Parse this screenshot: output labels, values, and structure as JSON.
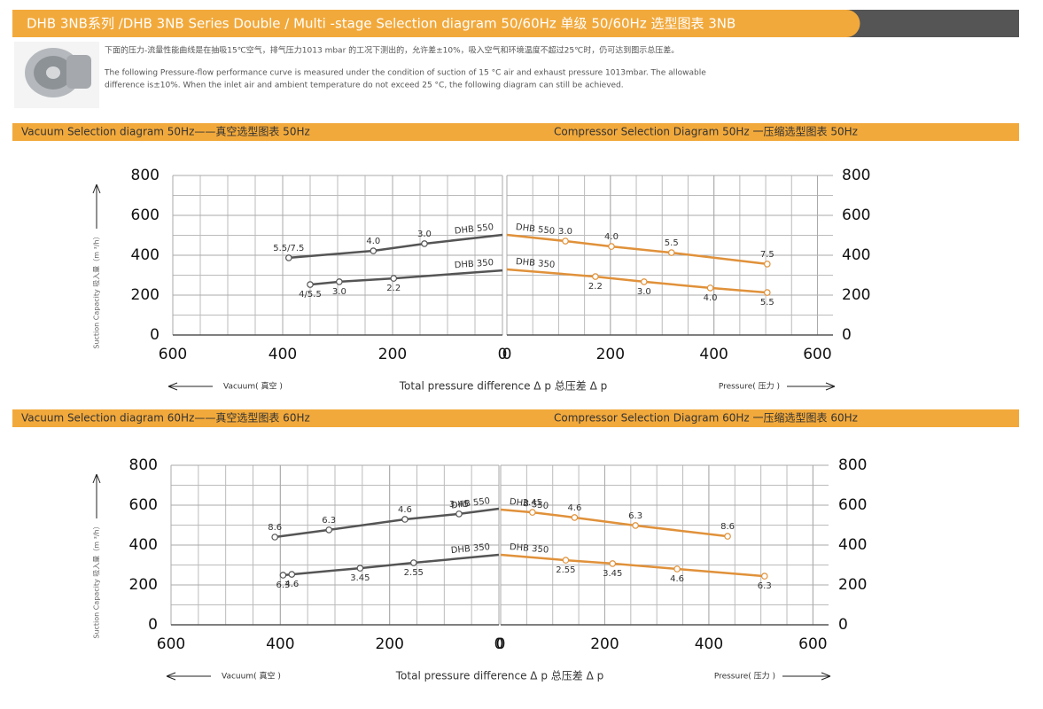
{
  "header": {
    "title": "DHB 3NB系列 /DHB 3NB Series Double / Multi -stage Selection diagram 50/60Hz 单级  50/60Hz 选型图表 3NB"
  },
  "description": {
    "cn": "下面的压力-流量性能曲线是在抽吸15℃空气，排气压力1013 mbar 的工况下测出的，允许差±10%，吸入空气和环境温度不超过25℃时，仍可达到图示总压差。",
    "en": [
      "The following Pressure-flow performance curve is measured under the condition of suction of 15 °C air and exhaust pressure 1013mbar. The allowable",
      "difference is±10%. When the inlet air and ambient temperature do not exceed 25 °C, the following diagram can still be achieved."
    ]
  },
  "sections": [
    {
      "center_label": "Total pressure difference    Δ p 总压差 Δ p"
    },
    {
      "center_label": "Total pressure difference    Δ p 总压差 Δ p"
    }
  ],
  "chart_data": [
    {
      "type": "line",
      "title": "Vacuum Selection diagram 50Hz——真空选型图表 50Hz",
      "ylabel": "Suction Capacity 吸入量（m ³/h）",
      "xlabel": "Vacuum( 真空 )",
      "yaxis_side": "left",
      "xlim": [
        600,
        0
      ],
      "ylim": [
        0,
        800
      ],
      "xticks": [
        600,
        400,
        200,
        0
      ],
      "yticks": [
        0,
        200,
        400,
        600,
        800
      ],
      "grid": true,
      "series": [
        {
          "name": "DHB 550",
          "color": "#555555",
          "x": [
            389,
            235,
            142,
            0
          ],
          "values": [
            387,
            422,
            458,
            502
          ],
          "point_labels": [
            "5.5/7.5",
            "4.0",
            "3.0",
            null
          ]
        },
        {
          "name": "DHB 350",
          "color": "#555555",
          "x": [
            350,
            297,
            198,
            0
          ],
          "values": [
            253,
            267,
            284,
            324
          ],
          "point_labels": [
            "4/5.5",
            "3.0",
            "2.2",
            null
          ]
        }
      ]
    },
    {
      "type": "line",
      "title": "Compressor Selection Diagram 50Hz 一压缩选型图表 50Hz",
      "xlabel": "Pressure( 压力 )",
      "yaxis_side": "right",
      "xlim": [
        0,
        630
      ],
      "ylim": [
        0,
        800
      ],
      "xticks": [
        0,
        200,
        400,
        600
      ],
      "yticks": [
        0,
        200,
        400,
        600,
        800
      ],
      "grid": true,
      "series": [
        {
          "name": "DHB 550",
          "color": "#e0913a",
          "x": [
            0,
            113,
            202,
            318,
            503
          ],
          "values": [
            502,
            471,
            444,
            413,
            356
          ],
          "point_labels": [
            null,
            "3.0",
            "4.0",
            "5.5",
            "7.5"
          ]
        },
        {
          "name": "DHB 350",
          "color": "#e0913a",
          "x": [
            0,
            171,
            265,
            393,
            503
          ],
          "values": [
            329,
            293,
            267,
            236,
            213
          ],
          "point_labels": [
            null,
            "2.2",
            "3.0",
            "4.0",
            "5.5"
          ]
        }
      ]
    },
    {
      "type": "line",
      "title": "Vacuum Selection diagram 60Hz——真空选型图表 60Hz",
      "ylabel": "Suction Capacity 吸入量（m ³/h）",
      "xlabel": "Vacuum( 真空 )",
      "yaxis_side": "left",
      "xlim": [
        600,
        0
      ],
      "ylim": [
        0,
        800
      ],
      "xticks": [
        600,
        400,
        200,
        0
      ],
      "yticks": [
        0,
        200,
        400,
        600,
        800
      ],
      "grid": true,
      "series": [
        {
          "name": "DHB 550",
          "color": "#555555",
          "x": [
            410,
            311,
            172,
            73,
            0
          ],
          "values": [
            440,
            476,
            529,
            556,
            582
          ],
          "point_labels": [
            "8.6",
            "6.3",
            "4.6",
            "3.45",
            null
          ]
        },
        {
          "name": "DHB 350",
          "color": "#555555",
          "x": [
            395,
            379,
            254,
            156,
            0
          ],
          "values": [
            249,
            253,
            284,
            311,
            351
          ],
          "point_labels": [
            "6.3",
            "4.6",
            "3.45",
            "2.55",
            null
          ]
        }
      ]
    },
    {
      "type": "line",
      "title": "Compressor Selection Diagram 60Hz 一压缩选型图表 60Hz",
      "xlabel": "Pressure( 压力 )",
      "yaxis_side": "right",
      "xlim": [
        0,
        630
      ],
      "ylim": [
        0,
        800
      ],
      "xticks": [
        0,
        200,
        400,
        600
      ],
      "yticks": [
        0,
        200,
        400,
        600,
        800
      ],
      "grid": true,
      "series": [
        {
          "name": "DHB 550",
          "color": "#e0913a",
          "x": [
            0,
            61,
            142,
            259,
            436
          ],
          "values": [
            578,
            564,
            538,
            498,
            444
          ],
          "point_labels": [
            null,
            "3.45",
            "4.6",
            "6.3",
            "8.6"
          ]
        },
        {
          "name": "DHB 350",
          "color": "#e0913a",
          "x": [
            0,
            125,
            215,
            339,
            507
          ],
          "values": [
            351,
            324,
            307,
            280,
            244
          ],
          "point_labels": [
            null,
            "2.55",
            "3.45",
            "4.6",
            "6.3"
          ]
        }
      ]
    }
  ]
}
